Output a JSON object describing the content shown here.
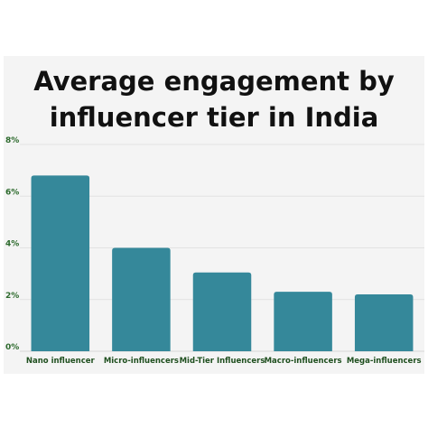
{
  "chart_data": {
    "type": "bar",
    "title_lines": [
      "Average engagement by",
      "influencer tier in India"
    ],
    "categories": [
      "Nano influencer",
      "Micro-influencers",
      "Mid-Tier Influencers",
      "Macro-influencers",
      "Mega-influencers"
    ],
    "values": [
      6.8,
      4.0,
      3.05,
      2.3,
      2.2
    ],
    "ylim": [
      0,
      8
    ],
    "yticks": [
      0,
      2,
      4,
      6,
      8
    ],
    "ytick_labels": [
      "0%",
      "2%",
      "4%",
      "6%",
      "8%"
    ],
    "grid": true,
    "bar_color": "#35889a",
    "tick_color": "#2e6b2e",
    "background": "#f4f4f4"
  }
}
